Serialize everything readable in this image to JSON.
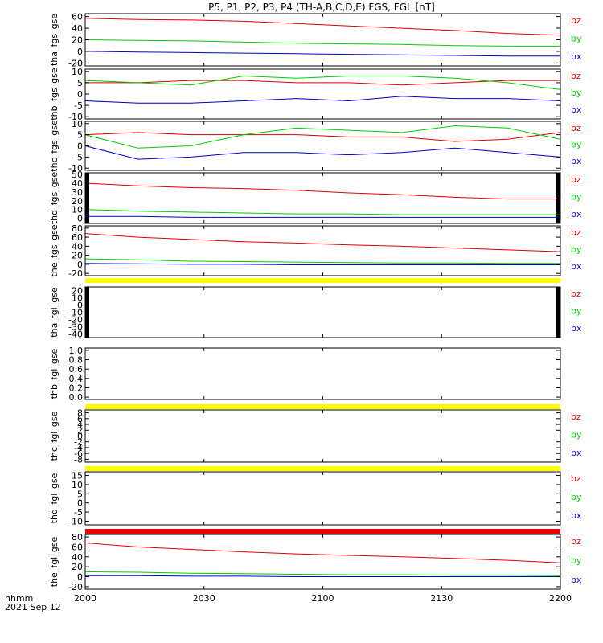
{
  "title": "P5, P1, P2, P3, P4 (TH-A,B,C,D,E) FGS, FGL [nT]",
  "footer": {
    "time_label": "hhmm",
    "date_label": "2021 Sep 12"
  },
  "colors": {
    "bz": "#dd0000",
    "by": "#00cc00",
    "bx": "#0000cc",
    "yellow_bar": "#ffff00",
    "red_bar": "#ee0000",
    "marker": "#000000"
  },
  "chart_data": {
    "type": "line",
    "x_ticks": [
      "2000",
      "2030",
      "2100",
      "2130",
      "2200"
    ],
    "x_range": [
      "2000",
      "2200"
    ],
    "panels": [
      {
        "ylabel": "tha_fgs_gse",
        "ylim": [
          -25,
          65
        ],
        "ticks": [
          "-20",
          "0",
          "20",
          "40",
          "60"
        ],
        "legend": [
          "bz",
          "by",
          "bx"
        ],
        "series": [
          {
            "name": "bz",
            "values": [
              57,
              55,
              54,
              52,
              48,
              44,
              40,
              36,
              31,
              28
            ]
          },
          {
            "name": "by",
            "values": [
              20,
              19,
              18,
              16,
              14,
              13,
              12,
              10,
              9,
              9
            ]
          },
          {
            "name": "bx",
            "values": [
              0,
              -1,
              -2,
              -3,
              -4,
              -5,
              -6,
              -7,
              -8,
              -8
            ]
          }
        ]
      },
      {
        "ylabel": "thb_fgs_gse",
        "ylim": [
          -11,
          11
        ],
        "ticks": [
          "-10",
          "-5",
          "0",
          "5",
          "10"
        ],
        "legend": [
          "bz",
          "by",
          "bx"
        ],
        "series": [
          {
            "name": "bz",
            "values": [
              5,
              5,
              6,
              6,
              5,
              5,
              4,
              5,
              6,
              6
            ]
          },
          {
            "name": "by",
            "values": [
              6,
              5,
              4,
              8,
              7,
              8,
              8,
              7,
              5,
              2
            ]
          },
          {
            "name": "bx",
            "values": [
              -3,
              -4,
              -4,
              -3,
              -2,
              -3,
              -1,
              -2,
              -2,
              -3
            ]
          }
        ]
      },
      {
        "ylabel": "thc_fgs_gse",
        "ylim": [
          -11,
          11
        ],
        "ticks": [
          "-10",
          "-5",
          "0",
          "5",
          "10"
        ],
        "legend": [
          "bz",
          "by",
          "bx"
        ],
        "series": [
          {
            "name": "bz",
            "values": [
              5,
              6,
              5,
              5,
              5,
              4,
              4,
              2,
              3,
              6
            ]
          },
          {
            "name": "by",
            "values": [
              5,
              -1,
              0,
              5,
              8,
              7,
              6,
              9,
              8,
              3
            ]
          },
          {
            "name": "bx",
            "values": [
              0,
              -6,
              -5,
              -3,
              -3,
              -4,
              -3,
              -1,
              -3,
              -5
            ]
          }
        ]
      },
      {
        "ylabel": "thd_fgs_gse",
        "ylim": [
          -6,
          52
        ],
        "ticks": [
          "0",
          "10",
          "20",
          "30",
          "40",
          "50"
        ],
        "legend": [
          "bz",
          "by",
          "bx"
        ],
        "series": [
          {
            "name": "bz",
            "values": [
              40,
              37,
              35,
              34,
              32,
              29,
              27,
              24,
              22,
              22
            ]
          },
          {
            "name": "by",
            "values": [
              10,
              8,
              7,
              6,
              5,
              5,
              4,
              4,
              4,
              4
            ]
          },
          {
            "name": "bx",
            "values": [
              2,
              2,
              1,
              1,
              1,
              1,
              1,
              1,
              1,
              1
            ]
          }
        ]
      },
      {
        "ylabel": "the_fgs_gse",
        "ylim": [
          -25,
          85
        ],
        "ticks": [
          "-20",
          "0",
          "20",
          "40",
          "60",
          "80"
        ],
        "legend": [
          "bz",
          "by",
          "bx"
        ],
        "series": [
          {
            "name": "bz",
            "values": [
              68,
              60,
              55,
              50,
              47,
              43,
              40,
              36,
              32,
              28
            ]
          },
          {
            "name": "by",
            "values": [
              12,
              10,
              7,
              6,
              5,
              4,
              3,
              3,
              2,
              2
            ]
          },
          {
            "name": "bx",
            "values": [
              2,
              1,
              0,
              0,
              -1,
              -1,
              -1,
              -1,
              -1,
              -1
            ]
          }
        ]
      },
      {
        "ylabel": "tha_fgl_gse",
        "ylim": [
          -45,
          25
        ],
        "ticks": [
          "-40",
          "-30",
          "-20",
          "-10",
          "0",
          "10",
          "20"
        ],
        "legend": [
          "bz",
          "by",
          "bx"
        ],
        "series": []
      },
      {
        "ylabel": "thb_fgl_gse",
        "ylim": [
          -0.05,
          1.05
        ],
        "ticks": [
          "0.0",
          "0.2",
          "0.4",
          "0.6",
          "0.8",
          "1.0"
        ],
        "legend": [],
        "series": []
      },
      {
        "ylabel": "thc_fgl_gse",
        "ylim": [
          -9,
          9
        ],
        "ticks": [
          "-8",
          "-6",
          "-4",
          "-2",
          "0",
          "2",
          "4",
          "6",
          "8"
        ],
        "legend": [
          "bz",
          "by",
          "bx"
        ],
        "series": []
      },
      {
        "ylabel": "thd_fgl_gse",
        "ylim": [
          -12,
          17
        ],
        "ticks": [
          "-10",
          "-5",
          "0",
          "5",
          "10",
          "15"
        ],
        "legend": [
          "bz",
          "by",
          "bx"
        ],
        "series": []
      },
      {
        "ylabel": "the_fgl_gse",
        "ylim": [
          -25,
          85
        ],
        "ticks": [
          "-20",
          "0",
          "20",
          "40",
          "60",
          "80"
        ],
        "legend": [
          "bz",
          "by",
          "bx"
        ],
        "series": [
          {
            "name": "bz",
            "values": [
              68,
              60,
              55,
              50,
              46,
              43,
              40,
              37,
              33,
              28
            ]
          },
          {
            "name": "by",
            "values": [
              10,
              9,
              7,
              6,
              5,
              4,
              4,
              3,
              3,
              2
            ]
          },
          {
            "name": "bx",
            "values": [
              2,
              2,
              1,
              1,
              0,
              0,
              0,
              0,
              0,
              0
            ]
          }
        ]
      }
    ]
  }
}
